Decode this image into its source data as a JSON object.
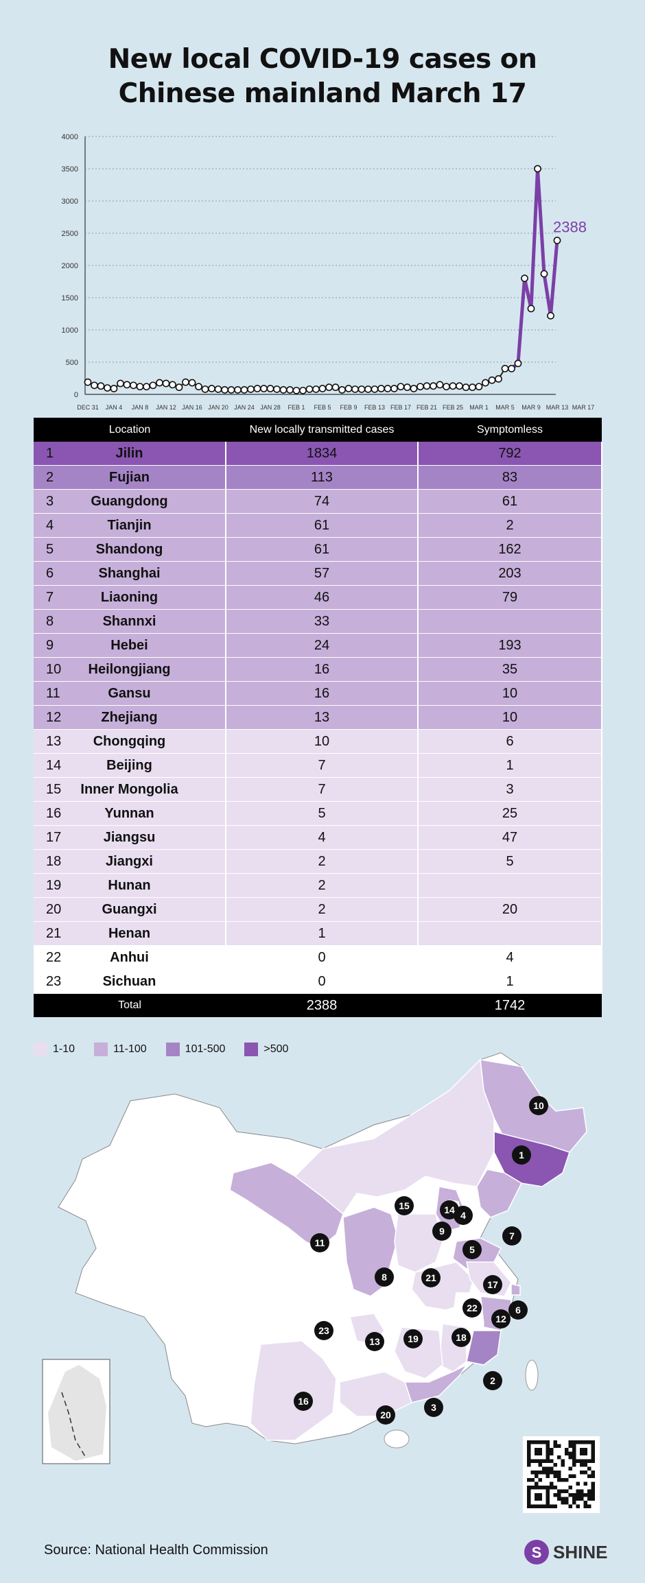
{
  "title_lines": [
    "New local COVID-19 cases on",
    "Chinese mainland March 17"
  ],
  "chart_data": {
    "type": "line",
    "title": "New local COVID-19 cases on Chinese mainland March 17",
    "x_ticks": [
      "DEC 31",
      "JAN 4",
      "JAN 8",
      "JAN 12",
      "JAN 16",
      "JAN 20",
      "JAN 24",
      "JAN 28",
      "FEB 1",
      "FEB 5",
      "FEB 9",
      "FEB 13",
      "FEB 17",
      "FEB 21",
      "FEB 25",
      "MAR 1",
      "MAR 5",
      "MAR 9",
      "MAR 13",
      "MAR 17"
    ],
    "ylim": [
      0,
      4000
    ],
    "y_ticks": [
      0,
      500,
      1000,
      1500,
      2000,
      2500,
      3000,
      3500,
      4000
    ],
    "grid": true,
    "series": [
      {
        "values": [
          190,
          140,
          130,
          100,
          90,
          170,
          150,
          140,
          120,
          120,
          140,
          180,
          170,
          150,
          110,
          190,
          180,
          120,
          80,
          90,
          80,
          70,
          70,
          70,
          70,
          80,
          90,
          90,
          90,
          80,
          70,
          70,
          60,
          60,
          80,
          80,
          90,
          110,
          110,
          70,
          90,
          80,
          80,
          80,
          80,
          90,
          90,
          90,
          120,
          110,
          90,
          120,
          130,
          130,
          150,
          120,
          130,
          130,
          110,
          110,
          120,
          180,
          220,
          240,
          400,
          400,
          480,
          1800,
          1330,
          3500,
          1870,
          1220,
          2388
        ],
        "color_early": "#222222",
        "color_recent": "#7b3fa6"
      }
    ],
    "annotation": "2388",
    "annotation_color": "#7b3fa6"
  },
  "table": {
    "headers": [
      "Location",
      "New locally transmitted cases",
      "Symptomless"
    ],
    "rows": [
      {
        "rank": "1",
        "location": "Jilin",
        "cases": "1834",
        "symptomless": "792",
        "tier": 4
      },
      {
        "rank": "2",
        "location": "Fujian",
        "cases": "113",
        "symptomless": "83",
        "tier": 3
      },
      {
        "rank": "3",
        "location": "Guangdong",
        "cases": "74",
        "symptomless": "61",
        "tier": 2
      },
      {
        "rank": "4",
        "location": "Tianjin",
        "cases": "61",
        "symptomless": "2",
        "tier": 2
      },
      {
        "rank": "5",
        "location": "Shandong",
        "cases": "61",
        "symptomless": "162",
        "tier": 2
      },
      {
        "rank": "6",
        "location": "Shanghai",
        "cases": "57",
        "symptomless": "203",
        "tier": 2
      },
      {
        "rank": "7",
        "location": "Liaoning",
        "cases": "46",
        "symptomless": "79",
        "tier": 2
      },
      {
        "rank": "8",
        "location": "Shannxi",
        "cases": "33",
        "symptomless": "",
        "tier": 2
      },
      {
        "rank": "9",
        "location": "Hebei",
        "cases": "24",
        "symptomless": "193",
        "tier": 2
      },
      {
        "rank": "10",
        "location": "Heilongjiang",
        "cases": "16",
        "symptomless": "35",
        "tier": 2
      },
      {
        "rank": "11",
        "location": "Gansu",
        "cases": "16",
        "symptomless": "10",
        "tier": 2
      },
      {
        "rank": "12",
        "location": "Zhejiang",
        "cases": "13",
        "symptomless": "10",
        "tier": 2
      },
      {
        "rank": "13",
        "location": "Chongqing",
        "cases": "10",
        "symptomless": "6",
        "tier": 1
      },
      {
        "rank": "14",
        "location": "Beijing",
        "cases": "7",
        "symptomless": "1",
        "tier": 1
      },
      {
        "rank": "15",
        "location": "Inner Mongolia",
        "cases": "7",
        "symptomless": "3",
        "tier": 1
      },
      {
        "rank": "16",
        "location": "Yunnan",
        "cases": "5",
        "symptomless": "25",
        "tier": 1
      },
      {
        "rank": "17",
        "location": "Jiangsu",
        "cases": "4",
        "symptomless": "47",
        "tier": 1
      },
      {
        "rank": "18",
        "location": "Jiangxi",
        "cases": "2",
        "symptomless": "5",
        "tier": 1
      },
      {
        "rank": "19",
        "location": "Hunan",
        "cases": "2",
        "symptomless": "",
        "tier": 1
      },
      {
        "rank": "20",
        "location": "Guangxi",
        "cases": "2",
        "symptomless": "20",
        "tier": 1
      },
      {
        "rank": "21",
        "location": "Henan",
        "cases": "1",
        "symptomless": "",
        "tier": 1
      },
      {
        "rank": "22",
        "location": "Anhui",
        "cases": "0",
        "symptomless": "4",
        "tier": 0
      },
      {
        "rank": "23",
        "location": "Sichuan",
        "cases": "0",
        "symptomless": "1",
        "tier": 0
      }
    ],
    "total": {
      "label": "Total",
      "cases": "2388",
      "symptomless": "1742"
    }
  },
  "legend": [
    {
      "label": "1-10",
      "color": "#e8def0"
    },
    {
      "label": "11-100",
      "color": "#c6afd9"
    },
    {
      "label": "101-500",
      "color": "#a584c6"
    },
    {
      "label": ">500",
      "color": "#8a56b2"
    }
  ],
  "tier_colors": [
    "#ffffff",
    "#e8def0",
    "#c6afd9",
    "#a584c6",
    "#8a56b2"
  ],
  "map_markers": [
    "1",
    "2",
    "3",
    "4",
    "5",
    "6",
    "7",
    "8",
    "9",
    "10",
    "11",
    "12",
    "13",
    "14",
    "15",
    "16",
    "17",
    "18",
    "19",
    "20",
    "21",
    "22",
    "23"
  ],
  "source": "Source: National Health Commission",
  "logo_text": "SHINE"
}
